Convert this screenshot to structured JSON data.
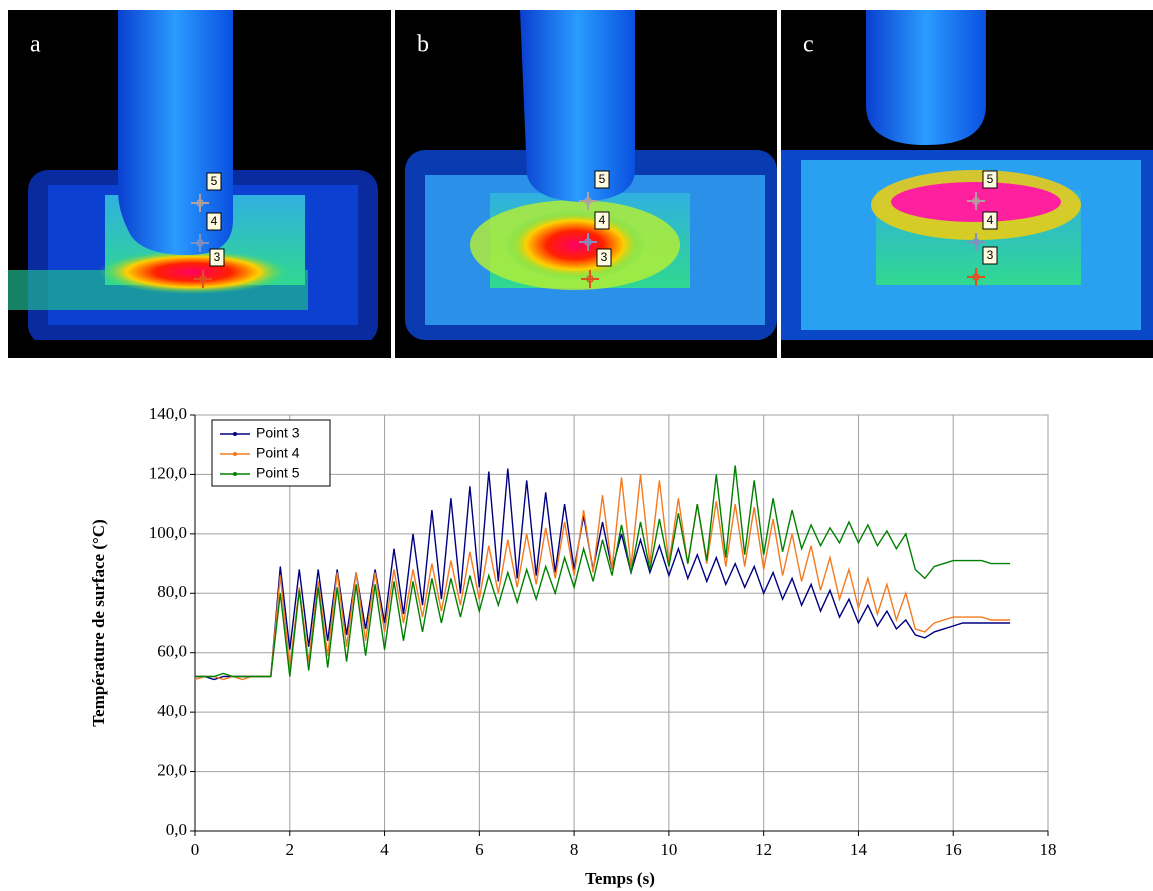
{
  "panels": [
    {
      "label": "a",
      "markers": [
        "5",
        "4",
        "3"
      ]
    },
    {
      "label": "b",
      "markers": [
        "5",
        "4",
        "3"
      ]
    },
    {
      "label": "c",
      "markers": [
        "5",
        "4",
        "3"
      ]
    }
  ],
  "chart_data": {
    "type": "line",
    "xlabel": "Temps (s)",
    "ylabel": "Température de surface (°C)",
    "x": [
      0,
      0.2,
      0.4,
      0.6,
      0.8,
      1,
      1.2,
      1.4,
      1.6,
      1.8,
      2,
      2.2,
      2.4,
      2.6,
      2.8,
      3,
      3.2,
      3.4,
      3.6,
      3.8,
      4,
      4.2,
      4.4,
      4.6,
      4.8,
      5,
      5.2,
      5.4,
      5.6,
      5.8,
      6,
      6.2,
      6.4,
      6.6,
      6.8,
      7,
      7.2,
      7.4,
      7.6,
      7.8,
      8,
      8.2,
      8.4,
      8.6,
      8.8,
      9,
      9.2,
      9.4,
      9.6,
      9.8,
      10,
      10.2,
      10.4,
      10.6,
      10.8,
      11,
      11.2,
      11.4,
      11.6,
      11.8,
      12,
      12.2,
      12.4,
      12.6,
      12.8,
      13,
      13.2,
      13.4,
      13.6,
      13.8,
      14,
      14.2,
      14.4,
      14.6,
      14.8,
      15,
      15.2,
      15.4,
      15.6,
      15.8,
      16,
      16.2,
      16.4,
      16.6,
      16.8,
      17,
      17.2
    ],
    "series": [
      {
        "name": "Point 3",
        "color": "#000080",
        "values": [
          52,
          52,
          51,
          52,
          52,
          52,
          52,
          52,
          52,
          89,
          61,
          88,
          62,
          88,
          64,
          88,
          66,
          87,
          68,
          88,
          70,
          95,
          73,
          100,
          76,
          108,
          78,
          112,
          80,
          116,
          82,
          121,
          84,
          122,
          85,
          118,
          86,
          114,
          87,
          110,
          88,
          106,
          88,
          104,
          88,
          100,
          87,
          98,
          87,
          96,
          86,
          95,
          85,
          93,
          84,
          92,
          83,
          90,
          82,
          89,
          80,
          87,
          78,
          85,
          76,
          83,
          74,
          81,
          72,
          78,
          70,
          76,
          69,
          74,
          68,
          71,
          66,
          65,
          67,
          68,
          69,
          70,
          70,
          70,
          70,
          70,
          70
        ]
      },
      {
        "name": "Point 4",
        "color": "#f47a20",
        "values": [
          51,
          52,
          52,
          51,
          52,
          51,
          52,
          52,
          52,
          86,
          55,
          82,
          57,
          84,
          59,
          87,
          62,
          87,
          64,
          87,
          67,
          88,
          70,
          88,
          72,
          90,
          74,
          91,
          76,
          94,
          78,
          96,
          80,
          98,
          82,
          100,
          83,
          102,
          85,
          104,
          86,
          108,
          87,
          113,
          88,
          119,
          89,
          120,
          90,
          118,
          90,
          112,
          90,
          110,
          90,
          111,
          89,
          110,
          89,
          109,
          88,
          105,
          86,
          100,
          84,
          96,
          81,
          92,
          78,
          88,
          75,
          85,
          73,
          83,
          71,
          80,
          68,
          67,
          70,
          71,
          72,
          72,
          72,
          72,
          71,
          71,
          71
        ]
      },
      {
        "name": "Point 5",
        "color": "#008000",
        "values": [
          52,
          52,
          52,
          53,
          52,
          52,
          52,
          52,
          52,
          80,
          52,
          81,
          54,
          82,
          55,
          82,
          57,
          83,
          59,
          83,
          61,
          84,
          64,
          84,
          67,
          85,
          70,
          85,
          72,
          86,
          74,
          86,
          76,
          87,
          77,
          88,
          78,
          89,
          80,
          92,
          82,
          95,
          84,
          98,
          86,
          103,
          87,
          104,
          88,
          105,
          89,
          107,
          90,
          110,
          91,
          120,
          92,
          123,
          93,
          118,
          93,
          112,
          94,
          108,
          95,
          103,
          96,
          102,
          97,
          104,
          97,
          103,
          96,
          101,
          95,
          100,
          88,
          85,
          89,
          90,
          91,
          91,
          91,
          91,
          90,
          90,
          90
        ]
      }
    ],
    "xlim": [
      0,
      18
    ],
    "xticks": [
      0,
      2,
      4,
      6,
      8,
      10,
      12,
      14,
      16,
      18
    ],
    "ylim": [
      0,
      140
    ],
    "yticks": [
      {
        "value": 0,
        "label": "0,0"
      },
      {
        "value": 20,
        "label": "20,0"
      },
      {
        "value": 40,
        "label": "40,0"
      },
      {
        "value": 60,
        "label": "60,0"
      },
      {
        "value": 80,
        "label": "80,0"
      },
      {
        "value": 100,
        "label": "100,0"
      },
      {
        "value": 120,
        "label": "120,0"
      },
      {
        "value": 140,
        "label": "140,0"
      }
    ],
    "grid": true,
    "legend": "upper left"
  }
}
